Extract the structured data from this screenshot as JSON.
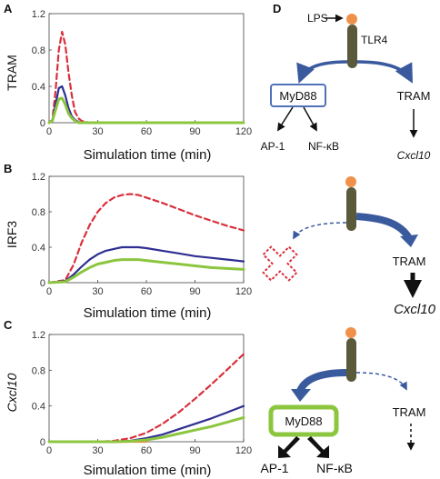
{
  "panels": {
    "A": "A",
    "B": "B",
    "C": "C",
    "D": "D"
  },
  "chart_data": [
    {
      "panel": "A",
      "type": "line",
      "ylabel": "TRAM",
      "xlabel": "Simulation time (min)",
      "xlim": [
        0,
        120
      ],
      "ylim": [
        0,
        1.2
      ],
      "xticks": [
        "0",
        "30",
        "60",
        "90",
        "120"
      ],
      "yticks": [
        "0",
        "0.4",
        "0.8",
        "1.2"
      ],
      "series": [
        {
          "color": "#d9303c",
          "style": "dashed",
          "x": [
            0,
            2,
            4,
            6,
            8,
            10,
            12,
            14,
            16,
            18,
            20,
            25,
            30,
            60,
            90,
            120
          ],
          "y": [
            0,
            0.03,
            0.35,
            0.8,
            1.0,
            0.86,
            0.55,
            0.3,
            0.12,
            0.05,
            0.02,
            0.0,
            0,
            0,
            0,
            0
          ]
        },
        {
          "color": "#2e2f92",
          "style": "solid",
          "x": [
            0,
            2,
            4,
            6,
            8,
            10,
            12,
            14,
            16,
            18,
            20,
            25,
            30,
            60,
            90,
            120
          ],
          "y": [
            0,
            0.02,
            0.2,
            0.38,
            0.4,
            0.3,
            0.16,
            0.07,
            0.03,
            0.01,
            0.0,
            0,
            0,
            0,
            0,
            0
          ]
        },
        {
          "color": "#8cc63f",
          "style": "solid",
          "x": [
            0,
            2,
            4,
            6,
            8,
            10,
            12,
            14,
            16,
            18,
            20,
            25,
            30,
            60,
            90,
            120
          ],
          "y": [
            0,
            0.02,
            0.14,
            0.26,
            0.27,
            0.2,
            0.1,
            0.05,
            0.02,
            0.0,
            0,
            0,
            0,
            0,
            0,
            0
          ]
        }
      ]
    },
    {
      "panel": "B",
      "type": "line",
      "ylabel": "IRF3",
      "xlabel": "Simulation time (min)",
      "xlim": [
        0,
        120
      ],
      "ylim": [
        0,
        1.2
      ],
      "xticks": [
        "0",
        "30",
        "60",
        "90",
        "120"
      ],
      "yticks": [
        "0",
        "0.4",
        "0.8",
        "1.2"
      ],
      "series": [
        {
          "color": "#d9303c",
          "style": "dashed",
          "x": [
            0,
            10,
            15,
            20,
            25,
            30,
            35,
            40,
            45,
            50,
            55,
            60,
            70,
            80,
            90,
            100,
            110,
            120
          ],
          "y": [
            0,
            0.03,
            0.2,
            0.45,
            0.65,
            0.8,
            0.9,
            0.96,
            0.99,
            1.0,
            0.99,
            0.96,
            0.9,
            0.83,
            0.76,
            0.7,
            0.64,
            0.59
          ]
        },
        {
          "color": "#2e2f92",
          "style": "solid",
          "x": [
            0,
            10,
            15,
            20,
            25,
            30,
            35,
            40,
            45,
            50,
            55,
            60,
            70,
            80,
            90,
            100,
            110,
            120
          ],
          "y": [
            0,
            0.02,
            0.09,
            0.18,
            0.26,
            0.32,
            0.36,
            0.38,
            0.4,
            0.4,
            0.4,
            0.39,
            0.36,
            0.33,
            0.3,
            0.28,
            0.26,
            0.24
          ]
        },
        {
          "color": "#8cc63f",
          "style": "solid",
          "x": [
            0,
            10,
            15,
            20,
            25,
            30,
            35,
            40,
            45,
            50,
            55,
            60,
            70,
            80,
            90,
            100,
            110,
            120
          ],
          "y": [
            0,
            0.01,
            0.06,
            0.12,
            0.17,
            0.21,
            0.23,
            0.25,
            0.26,
            0.26,
            0.26,
            0.25,
            0.23,
            0.21,
            0.19,
            0.17,
            0.16,
            0.15
          ]
        }
      ]
    },
    {
      "panel": "C",
      "type": "line",
      "ylabel": "Cxcl10",
      "xlabel": "Simulation time (min)",
      "xlim": [
        0,
        120
      ],
      "ylim": [
        0,
        1.2
      ],
      "xticks": [
        "0",
        "30",
        "60",
        "90",
        "120"
      ],
      "yticks": [
        "0",
        "0.4",
        "0.8",
        "1.2"
      ],
      "series": [
        {
          "color": "#f08a3c",
          "style": "solid",
          "x": [
            0,
            30,
            60
          ],
          "y": [
            0,
            0,
            0
          ]
        },
        {
          "color": "#d9303c",
          "style": "dashed",
          "x": [
            0,
            30,
            40,
            50,
            60,
            70,
            80,
            90,
            100,
            110,
            120
          ],
          "y": [
            0,
            0,
            0.01,
            0.04,
            0.1,
            0.2,
            0.33,
            0.48,
            0.64,
            0.81,
            0.98
          ]
        },
        {
          "color": "#2e2f92",
          "style": "solid",
          "x": [
            0,
            40,
            50,
            60,
            70,
            80,
            90,
            100,
            110,
            120
          ],
          "y": [
            0,
            0,
            0.01,
            0.04,
            0.08,
            0.14,
            0.2,
            0.26,
            0.33,
            0.4
          ]
        },
        {
          "color": "#8cc63f",
          "style": "solid",
          "x": [
            0,
            40,
            50,
            60,
            70,
            80,
            90,
            100,
            110,
            120
          ],
          "y": [
            0,
            0,
            0.005,
            0.02,
            0.05,
            0.09,
            0.13,
            0.17,
            0.22,
            0.27
          ]
        }
      ]
    }
  ],
  "diagram": {
    "d1": {
      "lps": "LPS",
      "tlr4": "TLR4",
      "myd88": "MyD88",
      "tram": "TRAM",
      "ap1": "AP-1",
      "nfkb": "NF-κB",
      "cxcl10": "Cxcl10"
    },
    "d2": {
      "tram": "TRAM",
      "cxcl10": "Cxcl10"
    },
    "d3": {
      "myd88": "MyD88",
      "tram": "TRAM",
      "ap1": "AP-1",
      "nfkb": "NF-κB"
    },
    "colors": {
      "ligand": "#f0914a",
      "receptor": "#5a5a3a",
      "arrow": "#3a5a9e",
      "myd88_box1": "#4f72b8",
      "myd88_box3": "#8cc63f",
      "cross": "#d9303c"
    }
  }
}
